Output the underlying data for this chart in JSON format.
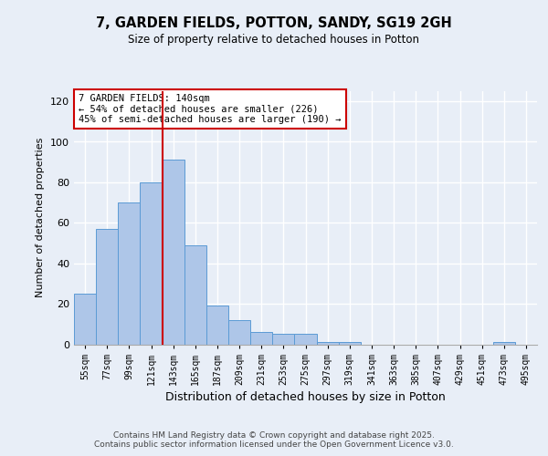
{
  "title1": "7, GARDEN FIELDS, POTTON, SANDY, SG19 2GH",
  "title2": "Size of property relative to detached houses in Potton",
  "xlabel": "Distribution of detached houses by size in Potton",
  "ylabel": "Number of detached properties",
  "categories": [
    "55sqm",
    "77sqm",
    "99sqm",
    "121sqm",
    "143sqm",
    "165sqm",
    "187sqm",
    "209sqm",
    "231sqm",
    "253sqm",
    "275sqm",
    "297sqm",
    "319sqm",
    "341sqm",
    "363sqm",
    "385sqm",
    "407sqm",
    "429sqm",
    "451sqm",
    "473sqm",
    "495sqm"
  ],
  "values": [
    25,
    57,
    70,
    80,
    91,
    49,
    19,
    12,
    6,
    5,
    5,
    1,
    1,
    0,
    0,
    0,
    0,
    0,
    0,
    1,
    0
  ],
  "bar_color": "#aec6e8",
  "bar_edge_color": "#5b9bd5",
  "vline_x": 4,
  "vline_color": "#cc0000",
  "annotation_text": "7 GARDEN FIELDS: 140sqm\n← 54% of detached houses are smaller (226)\n45% of semi-detached houses are larger (190) →",
  "annotation_box_color": "#ffffff",
  "annotation_box_edge": "#cc0000",
  "ylim": [
    0,
    125
  ],
  "yticks": [
    0,
    20,
    40,
    60,
    80,
    100,
    120
  ],
  "footer": "Contains HM Land Registry data © Crown copyright and database right 2025.\nContains public sector information licensed under the Open Government Licence v3.0.",
  "background_color": "#e8eef7",
  "grid_color": "#ffffff"
}
